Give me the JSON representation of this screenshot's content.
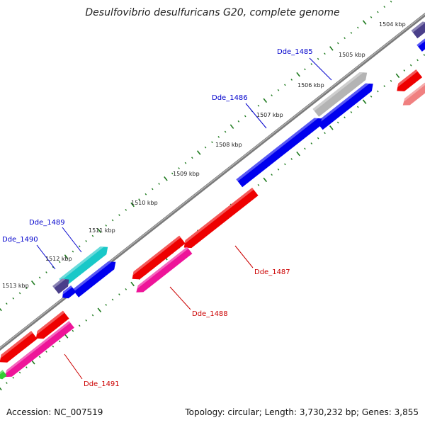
{
  "title": "Desulfovibrio desulfuricans G20, complete genome",
  "footer": {
    "accession": "Accession: NC_007519",
    "summary": "Topology: circular; Length: 3,730,232 bp; Genes: 3,855"
  },
  "colors": {
    "backbone": "#7a7a7a",
    "tick": "#1e7a1e",
    "label_forward": "#0000cc",
    "label_reverse": "#cc0000",
    "gene_blue": "#0000ee",
    "gene_red": "#ee0000",
    "gene_magenta": "#ee1499",
    "gene_cyan": "#19c8c8",
    "gene_grey": "#b4b4b4",
    "gene_navy": "#4a3f8a",
    "gene_pink": "#f08080"
  },
  "kbp_labels": [
    "1504 kbp",
    "1505 kbp",
    "1506 kbp",
    "1507 kbp",
    "1508 kbp",
    "1509 kbp",
    "1510 kbp",
    "1511 kbp",
    "1512 kbp",
    "1513 kbp"
  ],
  "gene_labels": [
    "Dde_1485",
    "Dde_1486",
    "Dde_1487",
    "Dde_1488",
    "Dde_1489",
    "Dde_1490",
    "Dde_1491"
  ]
}
